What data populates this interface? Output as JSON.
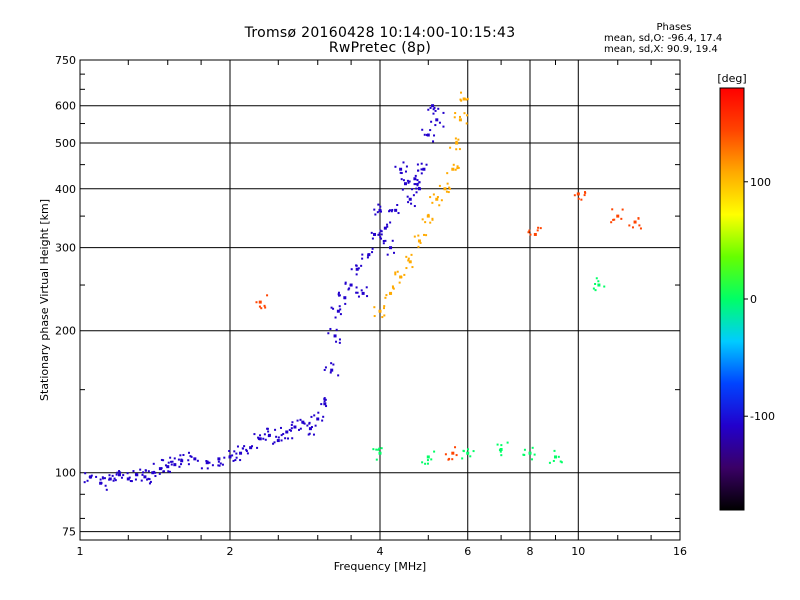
{
  "chart_data": {
    "type": "scatter",
    "title": "Tromsø 20160428 10:14:00-10:15:43",
    "subtitle": "RwPretec (8p)",
    "legend_title": "Phases",
    "legend_lines": [
      "mean, sd,O: -96.4, 17.4",
      "mean, sd,X:  90.9, 19.4"
    ],
    "xlabel": "Frequency [MHz]",
    "ylabel": "Stationary phase Virtual Height [km]",
    "x_scale": "log",
    "y_scale": "log",
    "xlim": [
      1,
      16
    ],
    "ylim": [
      72,
      750
    ],
    "x_ticks": [
      1,
      2,
      4,
      6,
      8,
      10,
      16
    ],
    "x_tick_labels": [
      "1",
      "2",
      "4",
      "6",
      "8",
      "10",
      "16"
    ],
    "y_ticks": [
      75,
      100,
      200,
      300,
      400,
      500,
      600,
      750
    ],
    "y_tick_labels": [
      "75",
      "100",
      "200",
      "300",
      "400",
      "500",
      "600",
      "750"
    ],
    "grid": true,
    "colorbar": {
      "label": "[deg]",
      "range": [
        -180,
        180
      ],
      "ticks": [
        100,
        0,
        -100
      ],
      "tick_labels": [
        "100",
        "0",
        "-100"
      ],
      "colors": [
        "#000000",
        "#3a0066",
        "#2200cc",
        "#0044ff",
        "#00ccff",
        "#00ff66",
        "#66ff00",
        "#ffff00",
        "#ffaa00",
        "#ff4400",
        "#ff0000"
      ]
    },
    "series": [
      {
        "color_value": -100,
        "points": [
          [
            1.05,
            98
          ],
          [
            1.1,
            95
          ],
          [
            1.15,
            97
          ],
          [
            1.2,
            99
          ],
          [
            1.25,
            97
          ],
          [
            1.3,
            99
          ],
          [
            1.35,
            98
          ],
          [
            1.4,
            100
          ],
          [
            1.45,
            102
          ],
          [
            1.5,
            103
          ],
          [
            1.55,
            104
          ],
          [
            1.6,
            106
          ],
          [
            1.7,
            107
          ],
          [
            1.8,
            105
          ],
          [
            1.9,
            107
          ],
          [
            2.0,
            108
          ],
          [
            2.1,
            110
          ],
          [
            2.2,
            113
          ],
          [
            2.3,
            118
          ],
          [
            2.4,
            120
          ],
          [
            2.5,
            117
          ],
          [
            2.6,
            122
          ],
          [
            2.7,
            125
          ],
          [
            2.8,
            128
          ],
          [
            2.9,
            124
          ],
          [
            3.0,
            130
          ],
          [
            3.1,
            140
          ],
          [
            3.2,
            165
          ],
          [
            3.25,
            195
          ],
          [
            3.3,
            220
          ],
          [
            3.4,
            235
          ],
          [
            3.5,
            250
          ],
          [
            3.6,
            270
          ],
          [
            3.7,
            240
          ],
          [
            3.8,
            290
          ],
          [
            3.9,
            320
          ],
          [
            4.0,
            360
          ],
          [
            4.1,
            330
          ],
          [
            4.2,
            300
          ],
          [
            4.3,
            360
          ],
          [
            4.4,
            440
          ],
          [
            4.5,
            410
          ],
          [
            4.6,
            380
          ],
          [
            4.7,
            420
          ],
          [
            4.8,
            400
          ],
          [
            4.9,
            440
          ],
          [
            5.0,
            520
          ],
          [
            5.1,
            600
          ],
          [
            5.2,
            560
          ]
        ]
      },
      {
        "color_value": 120,
        "points": [
          [
            4.0,
            220
          ],
          [
            4.2,
            240
          ],
          [
            4.4,
            260
          ],
          [
            4.6,
            280
          ],
          [
            4.8,
            310
          ],
          [
            5.0,
            350
          ],
          [
            5.2,
            380
          ],
          [
            5.4,
            400
          ],
          [
            5.6,
            440
          ],
          [
            5.7,
            500
          ],
          [
            5.8,
            560
          ],
          [
            5.9,
            620
          ]
        ]
      },
      {
        "color_value": 0,
        "points": [
          [
            4.0,
            110
          ],
          [
            5.0,
            108
          ],
          [
            6.0,
            110
          ],
          [
            7.0,
            112
          ],
          [
            8.0,
            110
          ],
          [
            9.0,
            108
          ],
          [
            11.0,
            250
          ]
        ]
      },
      {
        "color_value": 160,
        "points": [
          [
            2.3,
            230
          ],
          [
            5.6,
            110
          ],
          [
            8.2,
            320
          ],
          [
            10.0,
            390
          ],
          [
            12.0,
            350
          ],
          [
            13.0,
            340
          ]
        ]
      }
    ]
  }
}
